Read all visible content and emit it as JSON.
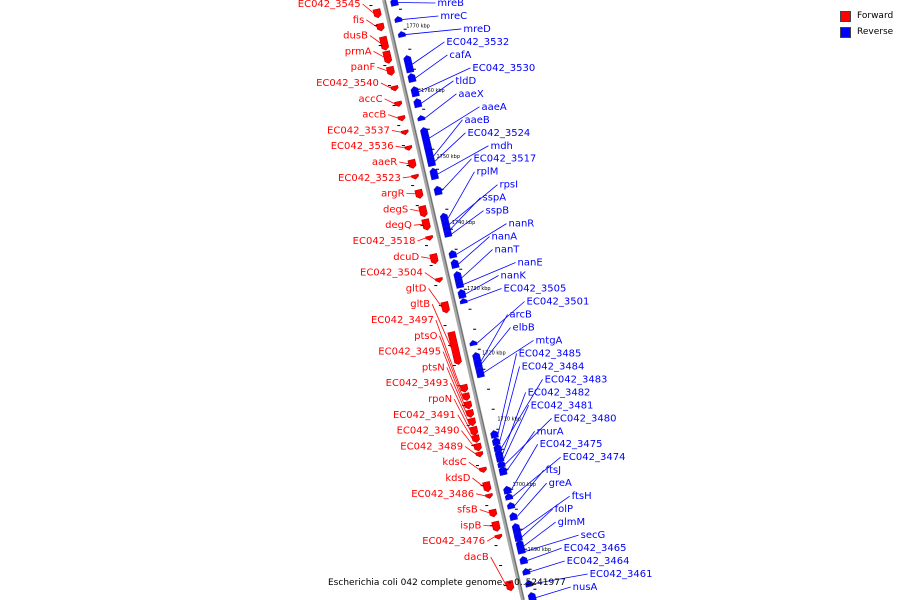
{
  "caption": "Escherichia coli 042 complete genome. - 0..5241977",
  "legend": [
    {
      "label": "Forward",
      "color": "#ff0000"
    },
    {
      "label": "Reverse",
      "color": "#0000ff"
    }
  ],
  "ticks": [
    {
      "label": "1770 kbp",
      "pos": 0.048
    },
    {
      "label": "1760 kbp",
      "pos": 0.155
    },
    {
      "label": "1750 kbp",
      "pos": 0.265
    },
    {
      "label": "1740 kbp",
      "pos": 0.375
    },
    {
      "label": "1730 kbp",
      "pos": 0.485
    },
    {
      "label": "1720 kbp",
      "pos": 0.593
    },
    {
      "label": "1710 kbp",
      "pos": 0.703
    },
    {
      "label": "1700 kbp",
      "pos": 0.812
    },
    {
      "label": "1690 kbp",
      "pos": 0.92
    }
  ],
  "forward_genes": [
    {
      "name": "EC042_3545",
      "pos": 0.012,
      "len": 0.01
    },
    {
      "name": "fis",
      "pos": 0.036,
      "len": 0.008
    },
    {
      "name": "dusB",
      "pos": 0.058,
      "len": 0.018
    },
    {
      "name": "prmA",
      "pos": 0.082,
      "len": 0.016
    },
    {
      "name": "panF",
      "pos": 0.108,
      "len": 0.01
    },
    {
      "name": "EC042_3540",
      "pos": 0.14,
      "len": 0.004
    },
    {
      "name": "accC",
      "pos": 0.166,
      "len": 0.004
    },
    {
      "name": "accB",
      "pos": 0.19,
      "len": 0.004
    },
    {
      "name": "EC042_3537",
      "pos": 0.214,
      "len": 0.003
    },
    {
      "name": "EC042_3536",
      "pos": 0.24,
      "len": 0.003
    },
    {
      "name": "aaeR",
      "pos": 0.263,
      "len": 0.01
    },
    {
      "name": "EC042_3523",
      "pos": 0.288,
      "len": 0.003
    },
    {
      "name": "argR",
      "pos": 0.313,
      "len": 0.01
    },
    {
      "name": "degS",
      "pos": 0.34,
      "len": 0.014
    },
    {
      "name": "degQ",
      "pos": 0.362,
      "len": 0.014
    },
    {
      "name": "EC042_3518",
      "pos": 0.39,
      "len": 0.003
    },
    {
      "name": "dcuD",
      "pos": 0.42,
      "len": 0.012
    },
    {
      "name": "EC042_3504",
      "pos": 0.46,
      "len": 0.003
    },
    {
      "name": "gltD",
      "pos": 0.5,
      "len": 0.014
    },
    {
      "name": "gltB",
      "pos": 0.55,
      "len": 0.05
    },
    {
      "name": "EC042_3497",
      "pos": 0.638,
      "len": 0.008
    },
    {
      "name": "ptsO",
      "pos": 0.652,
      "len": 0.008
    },
    {
      "name": "EC042_3495",
      "pos": 0.666,
      "len": 0.008
    },
    {
      "name": "ptsN",
      "pos": 0.68,
      "len": 0.008
    },
    {
      "name": "EC042_3493",
      "pos": 0.694,
      "len": 0.008
    },
    {
      "name": "rpoN",
      "pos": 0.708,
      "len": 0.01
    },
    {
      "name": "EC042_3491",
      "pos": 0.722,
      "len": 0.008
    },
    {
      "name": "EC042_3490",
      "pos": 0.736,
      "len": 0.008
    },
    {
      "name": "EC042_3489",
      "pos": 0.75,
      "len": 0.004
    },
    {
      "name": "kdsC",
      "pos": 0.776,
      "len": 0.004
    },
    {
      "name": "kdsD",
      "pos": 0.8,
      "len": 0.012
    },
    {
      "name": "EC042_3486",
      "pos": 0.82,
      "len": 0.003
    },
    {
      "name": "sfsB",
      "pos": 0.846,
      "len": 0.008
    },
    {
      "name": "ispB",
      "pos": 0.866,
      "len": 0.012
    },
    {
      "name": "EC042_3476",
      "pos": 0.888,
      "len": 0.003
    },
    {
      "name": "dacB",
      "pos": 0.965,
      "len": 0.012
    }
  ],
  "reverse_genes": [
    {
      "name": "mreB",
      "pos": 0.005,
      "len": 0.008
    },
    {
      "name": "mreC",
      "pos": 0.035,
      "len": 0.005
    },
    {
      "name": "mreD",
      "pos": 0.06,
      "len": 0.005
    },
    {
      "name": "EC042_3532",
      "pos": 0.1,
      "len": 0.024
    },
    {
      "name": "cafA",
      "pos": 0.13,
      "len": 0.01
    },
    {
      "name": "EC042_3530",
      "pos": 0.152,
      "len": 0.012
    },
    {
      "name": "tldD",
      "pos": 0.172,
      "len": 0.01
    },
    {
      "name": "aaeX",
      "pos": 0.2,
      "len": 0.004
    },
    {
      "name": "aaeA",
      "pos": 0.22,
      "len": 0.03
    },
    {
      "name": "aaeB",
      "pos": 0.25,
      "len": 0.03
    },
    {
      "name": "EC042_3524",
      "pos": 0.268,
      "len": 0.012
    },
    {
      "name": "mdh",
      "pos": 0.288,
      "len": 0.014
    },
    {
      "name": "EC042_3517",
      "pos": 0.318,
      "len": 0.01
    },
    {
      "name": "rplM",
      "pos": 0.363,
      "len": 0.012
    },
    {
      "name": "rpsI",
      "pos": 0.375,
      "len": 0.008
    },
    {
      "name": "sspA",
      "pos": 0.383,
      "len": 0.008
    },
    {
      "name": "sspB",
      "pos": 0.392,
      "len": 0.006
    },
    {
      "name": "nanR",
      "pos": 0.425,
      "len": 0.008
    },
    {
      "name": "nanA",
      "pos": 0.44,
      "len": 0.01
    },
    {
      "name": "nanT",
      "pos": 0.46,
      "len": 0.016
    },
    {
      "name": "nanE",
      "pos": 0.475,
      "len": 0.008
    },
    {
      "name": "nanK",
      "pos": 0.49,
      "len": 0.01
    },
    {
      "name": "EC042_3505",
      "pos": 0.505,
      "len": 0.004
    },
    {
      "name": "EC042_3501",
      "pos": 0.575,
      "len": 0.004
    },
    {
      "name": "arcB",
      "pos": 0.595,
      "len": 0.024
    },
    {
      "name": "elbB",
      "pos": 0.606,
      "len": 0.01
    },
    {
      "name": "mtgA",
      "pos": 0.62,
      "len": 0.012
    },
    {
      "name": "EC042_3485",
      "pos": 0.725,
      "len": 0.008
    },
    {
      "name": "EC042_3484",
      "pos": 0.737,
      "len": 0.008
    },
    {
      "name": "EC042_3483",
      "pos": 0.748,
      "len": 0.008
    },
    {
      "name": "EC042_3482",
      "pos": 0.758,
      "len": 0.008
    },
    {
      "name": "EC042_3481",
      "pos": 0.767,
      "len": 0.006
    },
    {
      "name": "EC042_3480",
      "pos": 0.776,
      "len": 0.006
    },
    {
      "name": "murA",
      "pos": 0.785,
      "len": 0.01
    },
    {
      "name": "EC042_3475",
      "pos": 0.818,
      "len": 0.008
    },
    {
      "name": "EC042_3474",
      "pos": 0.83,
      "len": 0.006
    },
    {
      "name": "ftsJ",
      "pos": 0.845,
      "len": 0.006
    },
    {
      "name": "greA",
      "pos": 0.862,
      "len": 0.008
    },
    {
      "name": "ftsH",
      "pos": 0.88,
      "len": 0.02
    },
    {
      "name": "folP",
      "pos": 0.895,
      "len": 0.01
    },
    {
      "name": "glmM",
      "pos": 0.908,
      "len": 0.014
    },
    {
      "name": "secG",
      "pos": 0.922,
      "len": 0.004
    },
    {
      "name": "EC042_3465",
      "pos": 0.935,
      "len": 0.008
    },
    {
      "name": "EC042_3464",
      "pos": 0.955,
      "len": 0.006
    },
    {
      "name": "EC042_3461",
      "pos": 0.975,
      "len": 0.006
    },
    {
      "name": "nusA",
      "pos": 0.995,
      "len": 0.012
    }
  ],
  "forward_label_y_start": 7,
  "forward_label_y_end": 560,
  "reverse_label_y_start": 6,
  "reverse_label_y_end": 590
}
